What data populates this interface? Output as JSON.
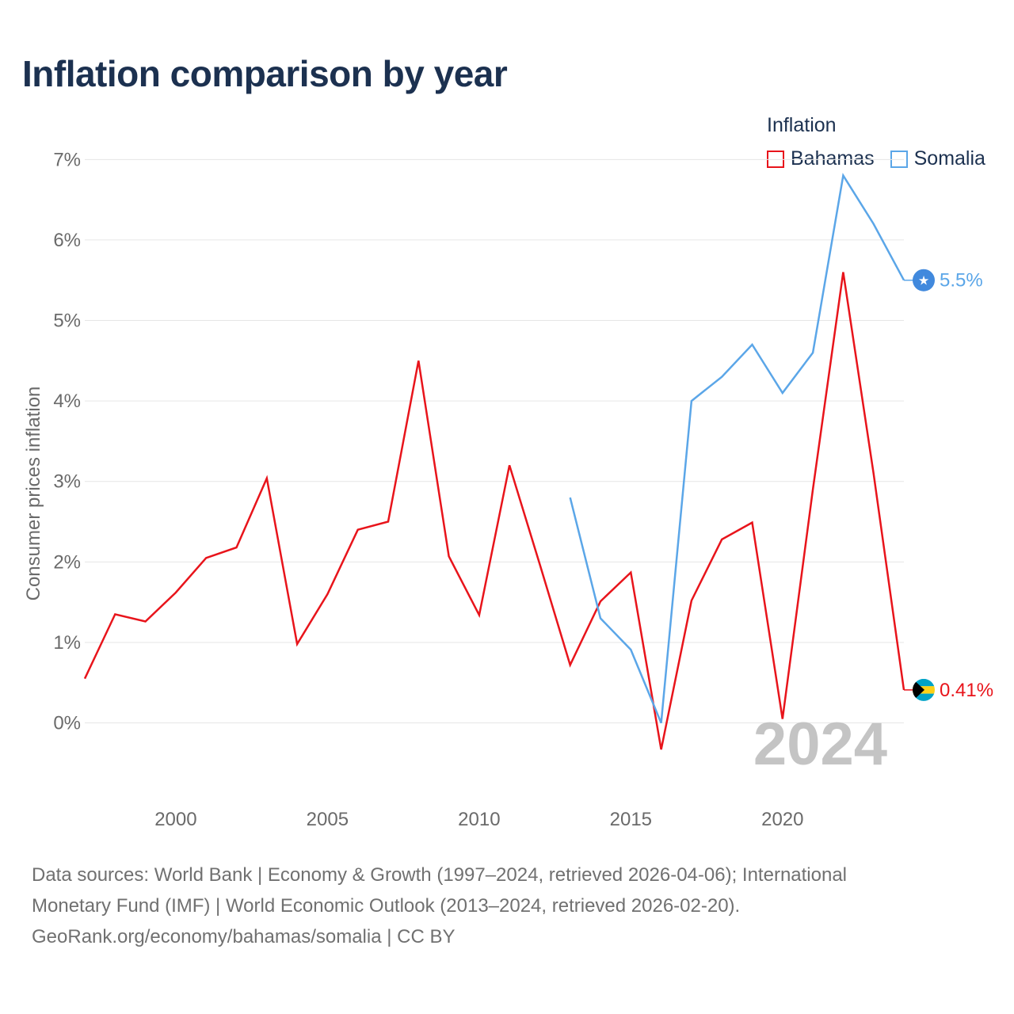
{
  "title": "Inflation comparison by year",
  "legend": {
    "title": "Inflation",
    "items": [
      {
        "label": "Bahamas",
        "color": "#e8141b"
      },
      {
        "label": "Somalia",
        "color": "#5ba6e8"
      }
    ]
  },
  "chart_data": {
    "type": "line",
    "title": "Inflation comparison by year",
    "xlabel": "",
    "ylabel": "Consumer prices inflation",
    "xlim": [
      1997,
      2024
    ],
    "ylim": [
      -0.9,
      7.2
    ],
    "y_ticks": [
      0,
      1,
      2,
      3,
      4,
      5,
      6,
      7
    ],
    "y_tick_labels": [
      "0%",
      "1%",
      "2%",
      "3%",
      "4%",
      "5%",
      "6%",
      "7%"
    ],
    "x_ticks": [
      2000,
      2005,
      2010,
      2015,
      2020
    ],
    "x_tick_labels": [
      "2000",
      "2005",
      "2010",
      "2015",
      "2020"
    ],
    "grid": true,
    "legend_position": "top-right",
    "year_label": "2024",
    "series": [
      {
        "name": "Bahamas",
        "color": "#e8141b",
        "end_label": "0.41%",
        "x": [
          1997,
          1998,
          1999,
          2000,
          2001,
          2002,
          2003,
          2004,
          2005,
          2006,
          2007,
          2008,
          2009,
          2010,
          2011,
          2012,
          2013,
          2014,
          2015,
          2016,
          2017,
          2018,
          2019,
          2020,
          2021,
          2022,
          2023,
          2024
        ],
        "values": [
          0.55,
          1.35,
          1.26,
          1.62,
          2.05,
          2.18,
          3.04,
          0.98,
          1.6,
          2.4,
          2.5,
          4.5,
          2.07,
          1.34,
          3.2,
          1.97,
          0.72,
          1.51,
          1.87,
          -0.33,
          1.52,
          2.28,
          2.49,
          0.05,
          2.9,
          5.6,
          3.1,
          0.41
        ]
      },
      {
        "name": "Somalia",
        "color": "#5ba6e8",
        "end_label": "5.5%",
        "x": [
          2013,
          2014,
          2015,
          2016,
          2017,
          2018,
          2019,
          2020,
          2021,
          2022,
          2023,
          2024
        ],
        "values": [
          2.8,
          1.3,
          0.91,
          0.0,
          4.0,
          4.3,
          4.7,
          4.1,
          4.6,
          6.8,
          6.2,
          5.5
        ]
      }
    ]
  },
  "footer": {
    "line1": "Data sources: World Bank | Economy & Growth (1997–2024, retrieved 2026-04-06); International",
    "line2": "Monetary Fund (IMF) | World Economic Outlook (2013–2024, retrieved 2026-02-20).",
    "line3": "GeoRank.org/economy/bahamas/somalia | CC BY"
  }
}
